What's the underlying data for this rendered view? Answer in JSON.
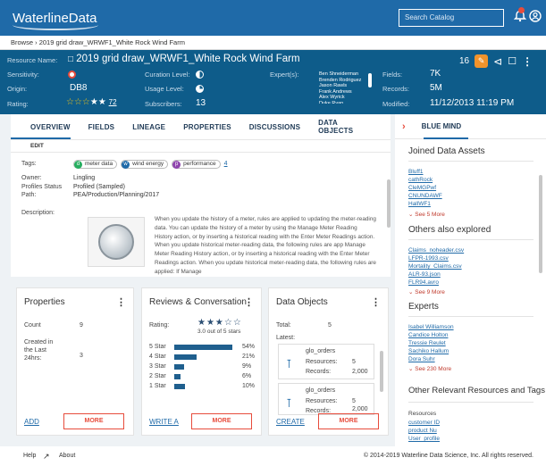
{
  "topbar": {
    "logo": "WaterlineData",
    "search_placeholder": "Search Catalog",
    "notification_icon": "bell-icon",
    "user_icon": "user-icon"
  },
  "breadcrumb": {
    "root": "Browse",
    "separator": "›",
    "current": "2019 grid draw_WRWF1_White Rock Wind Farm"
  },
  "header": {
    "resource_name_label": "Resource Name:",
    "resource_name": "2019 grid draw_WRWF1_White Rock Wind Farm",
    "sensitivity_label": "Sensitivity:",
    "origin_label": "Origin:",
    "origin": "DB8",
    "rating_label": "Rating:",
    "rating_count": "72",
    "curation_label": "Curation Level:",
    "usage_label": "Usage Level:",
    "subscribers_label": "Subscribers:",
    "subscribers": "13",
    "experts_label": "Expert(s):",
    "experts": [
      "Ben Shneiderman",
      "Brenden Rodriguez",
      "Jason Rawls",
      "Frank Andrews",
      "Alex Wyrick",
      "Duke Ryan"
    ],
    "fields_label": "Fields:",
    "fields": "7K",
    "records_label": "Records:",
    "records": "5M",
    "modified_label": "Modified:",
    "modified": "11/12/2013  11:19 PM",
    "comment_count": "16"
  },
  "tabs": [
    "OVERVIEW",
    "FIELDS",
    "LINEAGE",
    "PROPERTIES",
    "DISCUSSIONS",
    "DATA OBJECTS"
  ],
  "edit_label": "EDIT",
  "overview": {
    "tags_label": "Tags:",
    "tags": [
      {
        "label": "meter data",
        "color": "#27ae60",
        "symbol": "d"
      },
      {
        "label": "wind energy",
        "color": "#1f6aa8",
        "symbol": "w"
      },
      {
        "label": "performance",
        "color": "#8e44ad",
        "symbol": "p"
      }
    ],
    "tags_more": "4",
    "owner_label": "Owner:",
    "owner": "Lingling",
    "profiles_label": "Profiles Status",
    "profiles": "Profiled (Sampled)",
    "path_label": "Path:",
    "path": "PEA/Production/Planning/2017",
    "description_label": "Description:",
    "description": "When you update the history of a meter, rules are applied to updating the meter-reading data. You can update the history of a meter by using the Manage Meter Reading History action, or by inserting a historical reading with the Enter Meter Readings action. When you update historical meter-reading data, the following rules are app Manage Meter Reading History action, or by inserting a historical reading with the Enter Meter Readings action. When you update historical meter-reading data, the following rules are applied: If Manage"
  },
  "properties_card": {
    "title": "Properties",
    "count_label": "Count",
    "count": "9",
    "created_label": "Created in the Last 24hrs:",
    "created": "3",
    "footer_link": "ADD",
    "more": "MORE"
  },
  "reviews_card": {
    "title": "Reviews & Conversation",
    "rating_label": "Rating:",
    "rating_text": "3.0 out of 5 stars",
    "rating_value": 3,
    "bars": [
      {
        "label": "5 Star",
        "pct": "54%",
        "value": 54
      },
      {
        "label": "4 Star",
        "pct": "21%",
        "value": 21
      },
      {
        "label": "3 Star",
        "pct": "9%",
        "value": 9
      },
      {
        "label": "2 Star",
        "pct": "6%",
        "value": 6
      },
      {
        "label": "1 Star",
        "pct": "10%",
        "value": 10
      }
    ],
    "footer_link": "WRITE A",
    "more": "MORE"
  },
  "objects_card": {
    "title": "Data Objects",
    "total_label": "Total:",
    "total": "5",
    "latest_label": "Latest:",
    "items": [
      {
        "name": "glo_orders",
        "resources_label": "Resources:",
        "resources": "5",
        "records_label": "Records:",
        "records": "2,000"
      },
      {
        "name": "glo_orders",
        "resources_label": "Resources:",
        "resources": "5",
        "records_label": "Records:",
        "records": "2,000"
      }
    ],
    "footer_link": "CREATE",
    "more": "MORE"
  },
  "right_panel": {
    "tab": "BLUE MIND",
    "joined_title": "Joined Data Assets",
    "joined": [
      "Bluff1",
      "cathRock",
      "CleMGPwf",
      "CNUNDAWF",
      "HallWF1"
    ],
    "joined_more": "See 5 More",
    "others_title": "Others also explored",
    "others": [
      "Claims_noheader.csv",
      "LFPR-1993.csv",
      "Mortality_Claims.csv",
      "ALR-93.json",
      "FLR94.avro"
    ],
    "others_more": "See 9 More",
    "experts_title": "Experts",
    "experts": [
      "Isabel Williamson",
      "Candice Holton",
      "Tressie Reulet",
      "Sachiko Hallum",
      "Dora Suhr"
    ],
    "experts_more": "See 230 More",
    "relevant_title": "Other Relevant Resources and Tags",
    "resources_label": "Resources",
    "resources": [
      "customer ID",
      "product Nu",
      "User_profile"
    ]
  },
  "footer": {
    "help": "Help",
    "about": "About",
    "copyright": "© 2014-2019 Waterline Data Science, Inc. All rights reserved."
  },
  "colors": {
    "topbar": "#1f6aa8",
    "header": "#0e5c8a",
    "accent_red": "#e74c3c",
    "badge_orange": "#f0932b"
  }
}
